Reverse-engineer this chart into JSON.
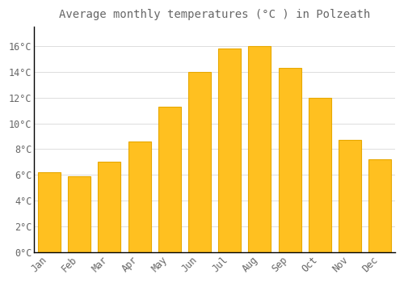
{
  "title": "Average monthly temperatures (°C ) in Polzeath",
  "months": [
    "Jan",
    "Feb",
    "Mar",
    "Apr",
    "May",
    "Jun",
    "Jul",
    "Aug",
    "Sep",
    "Oct",
    "Nov",
    "Dec"
  ],
  "values": [
    6.2,
    5.9,
    7.0,
    8.6,
    11.3,
    14.0,
    15.8,
    16.0,
    14.3,
    12.0,
    8.7,
    7.2
  ],
  "bar_color": "#FFC020",
  "bar_edge_color": "#E8A800",
  "background_color": "#FFFFFF",
  "grid_color": "#DDDDDD",
  "text_color": "#666666",
  "spine_color": "#000000",
  "ylim": [
    0,
    17.5
  ],
  "yticks": [
    0,
    2,
    4,
    6,
    8,
    10,
    12,
    14,
    16
  ],
  "title_fontsize": 10,
  "tick_fontsize": 8.5
}
